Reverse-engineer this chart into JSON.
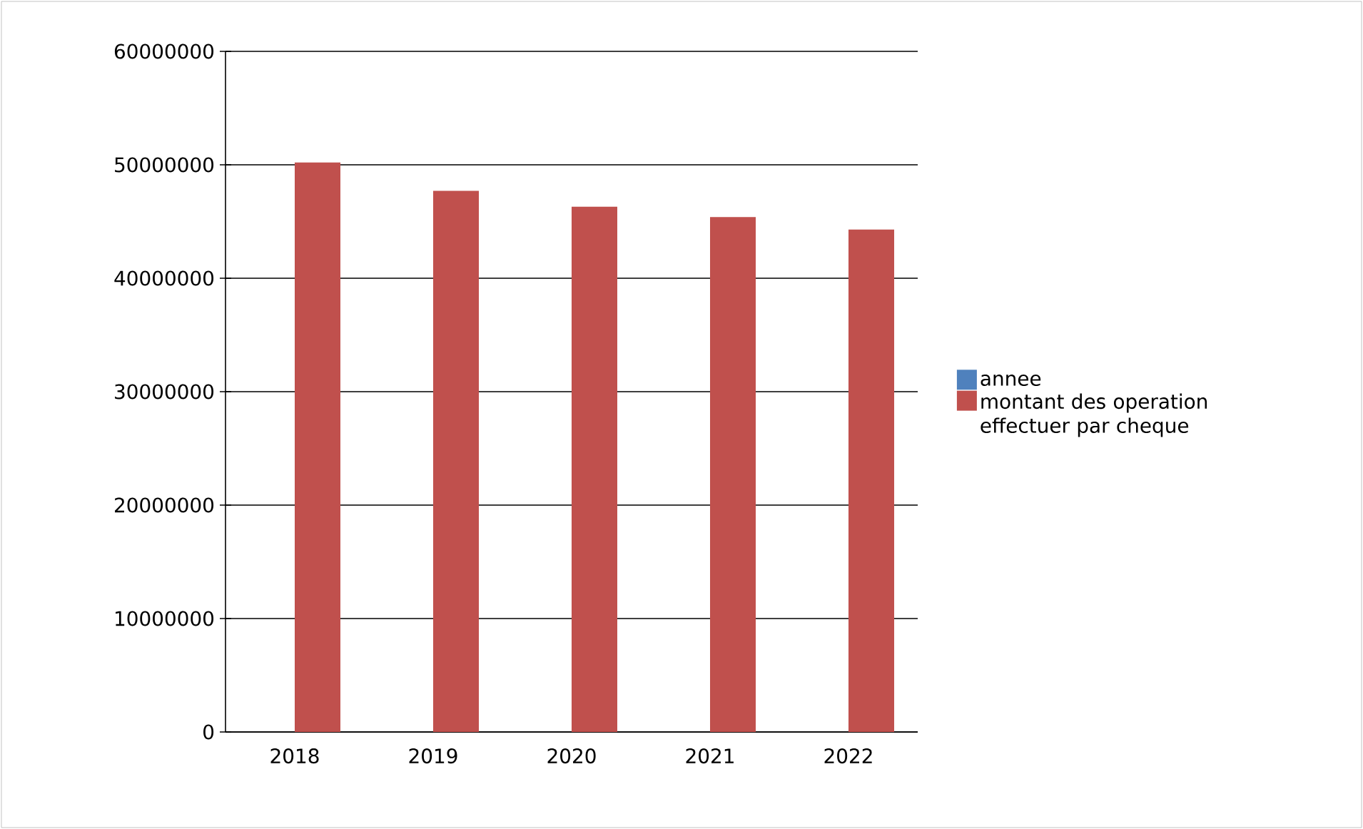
{
  "chart_data": {
    "type": "bar",
    "categories": [
      "2018",
      "2019",
      "2020",
      "2021",
      "2022"
    ],
    "series": [
      {
        "name": "annee",
        "color": "#4f81bd",
        "values": [
          null,
          null,
          null,
          null,
          null
        ]
      },
      {
        "name": "montant des operation effectuer par cheque",
        "color": "#c0504d",
        "values": [
          50200000,
          47700000,
          46300000,
          45400000,
          44300000
        ]
      }
    ],
    "ylim": [
      0,
      60000000
    ],
    "yticks": [
      0,
      10000000,
      20000000,
      30000000,
      40000000,
      50000000,
      60000000
    ],
    "grid": "y",
    "legend": "right"
  }
}
